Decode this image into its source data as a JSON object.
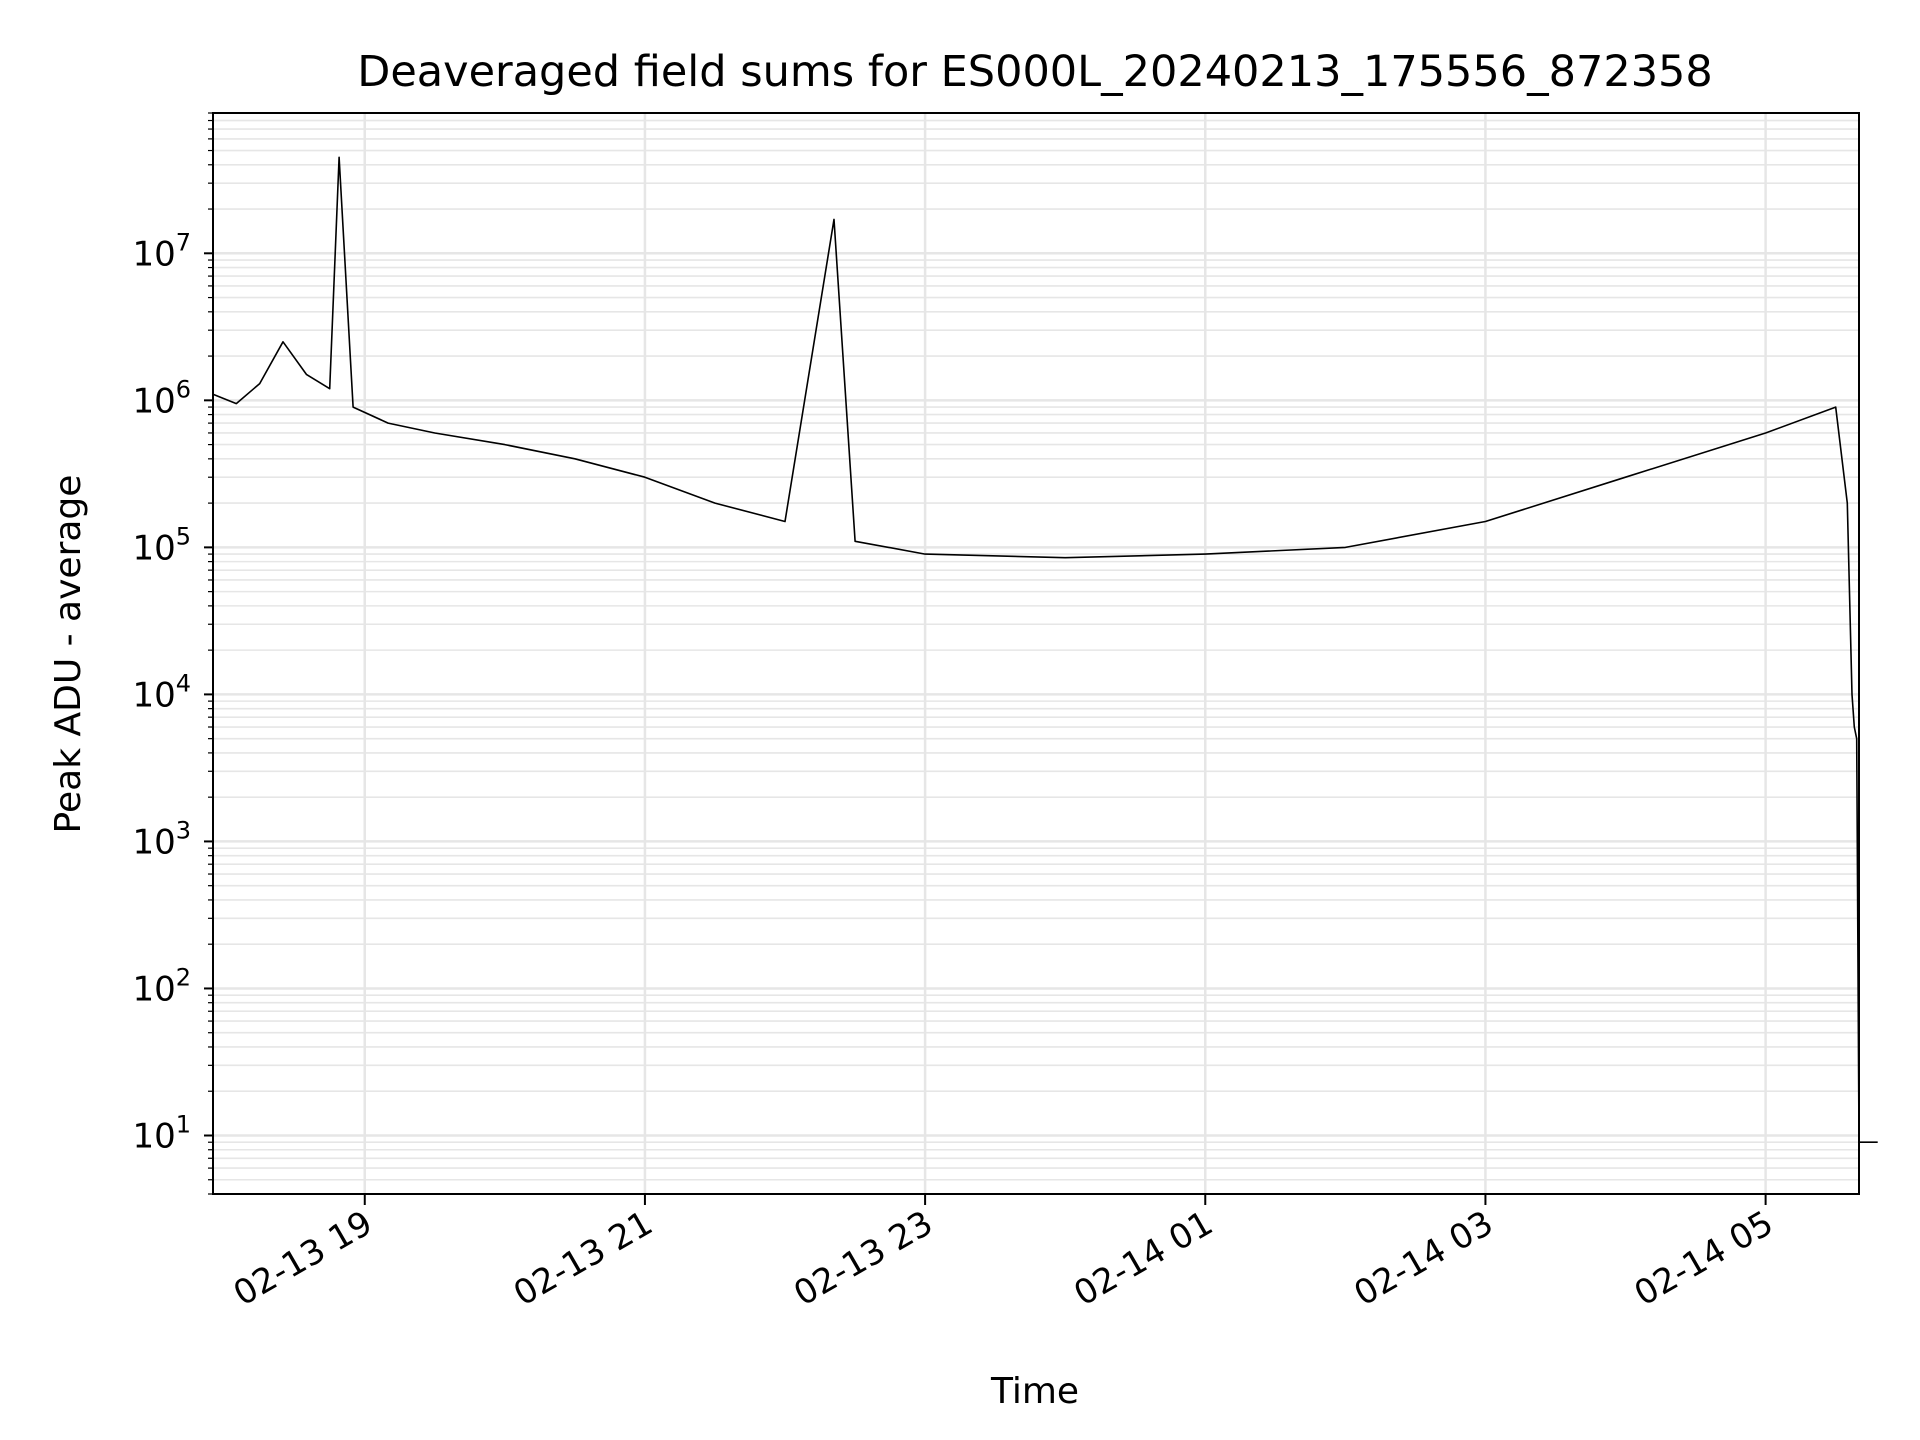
{
  "chart_data": {
    "type": "line",
    "title": "Deaveraged field sums for ES000L_20240213_175556_872358",
    "xlabel": "Time",
    "ylabel": "Peak ADU - average",
    "yscale": "log",
    "ylim": [
      4,
      90000000
    ],
    "xlim": [
      "2024-02-13 17:55",
      "2024-02-14 05:40"
    ],
    "grid": true,
    "line_color": "#000000",
    "grid_color": "#e6e6e6",
    "x_ticks": [
      {
        "value": "2024-02-13 19:00",
        "label": "02-13 19"
      },
      {
        "value": "2024-02-13 21:00",
        "label": "02-13 21"
      },
      {
        "value": "2024-02-13 23:00",
        "label": "02-13 23"
      },
      {
        "value": "2024-02-14 01:00",
        "label": "02-14 01"
      },
      {
        "value": "2024-02-14 03:00",
        "label": "02-14 03"
      },
      {
        "value": "2024-02-14 05:00",
        "label": "02-14 05"
      }
    ],
    "y_ticks": [
      {
        "value": 10,
        "base": "10",
        "exp": "1"
      },
      {
        "value": 100,
        "base": "10",
        "exp": "2"
      },
      {
        "value": 1000,
        "base": "10",
        "exp": "3"
      },
      {
        "value": 10000,
        "base": "10",
        "exp": "4"
      },
      {
        "value": 100000,
        "base": "10",
        "exp": "5"
      },
      {
        "value": 1000000,
        "base": "10",
        "exp": "6"
      },
      {
        "value": 10000000,
        "base": "10",
        "exp": "7"
      }
    ],
    "series": [
      {
        "points": [
          [
            "2024-02-13 17:55",
            1100000
          ],
          [
            "2024-02-13 18:05",
            950000
          ],
          [
            "2024-02-13 18:15",
            1300000
          ],
          [
            "2024-02-13 18:25",
            2500000
          ],
          [
            "2024-02-13 18:35",
            1500000
          ],
          [
            "2024-02-13 18:45",
            1200000
          ],
          [
            "2024-02-13 18:49",
            45000000
          ],
          [
            "2024-02-13 18:55",
            900000
          ],
          [
            "2024-02-13 19:10",
            700000
          ],
          [
            "2024-02-13 19:30",
            600000
          ],
          [
            "2024-02-13 20:00",
            500000
          ],
          [
            "2024-02-13 20:30",
            400000
          ],
          [
            "2024-02-13 21:00",
            300000
          ],
          [
            "2024-02-13 21:30",
            200000
          ],
          [
            "2024-02-13 22:00",
            150000
          ],
          [
            "2024-02-13 22:21",
            17000000
          ],
          [
            "2024-02-13 22:30",
            110000
          ],
          [
            "2024-02-13 23:00",
            90000
          ],
          [
            "2024-02-14 00:00",
            85000
          ],
          [
            "2024-02-14 01:00",
            90000
          ],
          [
            "2024-02-14 02:00",
            100000
          ],
          [
            "2024-02-14 03:00",
            150000
          ],
          [
            "2024-02-14 04:00",
            300000
          ],
          [
            "2024-02-14 05:00",
            600000
          ],
          [
            "2024-02-14 05:30",
            900000
          ],
          [
            "2024-02-14 05:35",
            200000
          ],
          [
            "2024-02-14 05:37",
            10000
          ],
          [
            "2024-02-14 05:38",
            6000
          ],
          [
            "2024-02-14 05:39",
            5000
          ],
          [
            "2024-02-14 05:40",
            9
          ],
          [
            "2024-02-14 05:48",
            9
          ]
        ]
      }
    ]
  }
}
